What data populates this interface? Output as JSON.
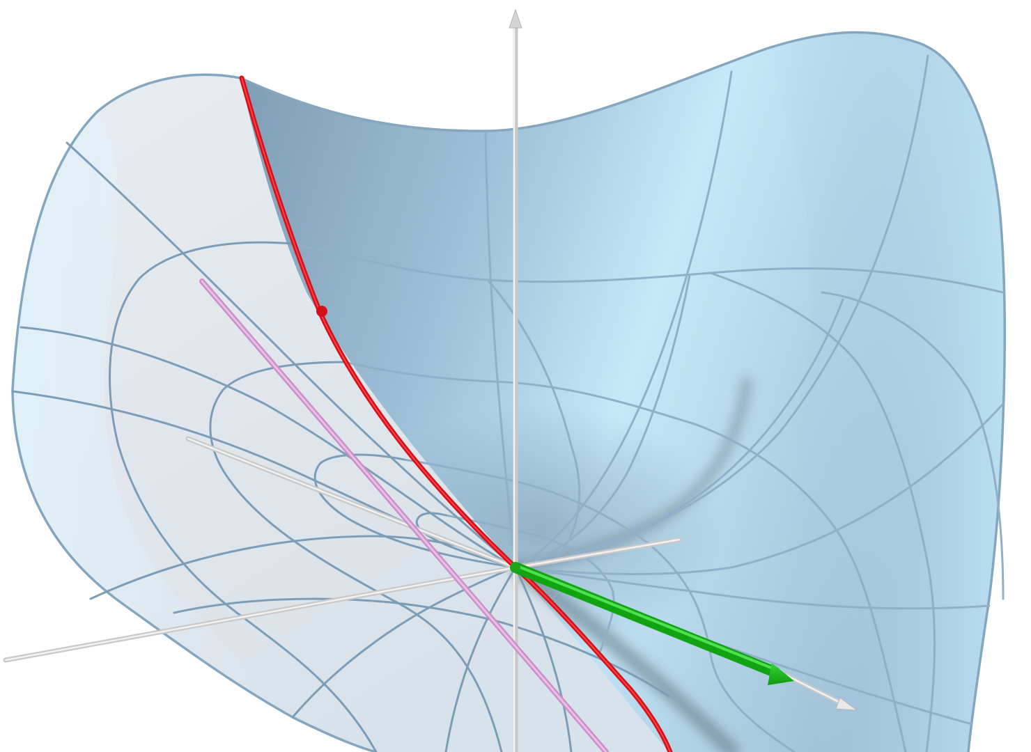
{
  "figure": {
    "surface_color": "#a9cfe6",
    "surface_light_color": "#e4f3fb",
    "surface_shadow_color": "#7f9db4",
    "mesh_color": "#8fb0c8",
    "axis_color": "#c9c9c9",
    "curve_color": "#e8141c",
    "tangent_line_color": "#d9a0d6",
    "vector_color": "#22b422",
    "shadow_color": "#6f7f8c"
  }
}
